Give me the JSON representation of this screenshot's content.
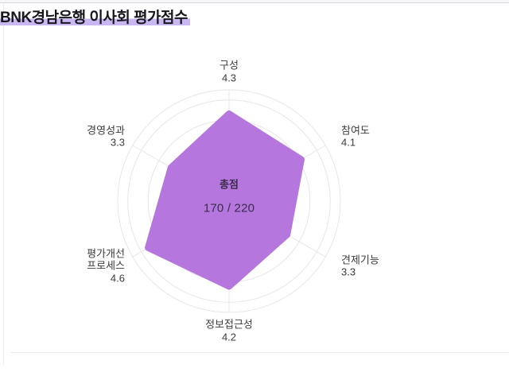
{
  "page": {
    "title": "BNK경남은행 이사회 평가점수"
  },
  "chart_data": {
    "type": "radar",
    "title": "BNK경남은행 이사회 평가점수",
    "categories": [
      "구성",
      "참여도",
      "견제기능",
      "정보접근성",
      "평가개선\n프로세스",
      "경영성과"
    ],
    "values": [
      4.3,
      4.1,
      3.3,
      4.2,
      4.6,
      3.3
    ],
    "value_labels": [
      "4.3",
      "4.1",
      "3.3",
      "4.2",
      "4.6",
      "3.3"
    ],
    "scale": {
      "min": 0,
      "max": 5.5,
      "ring_values": [
        1,
        2,
        3,
        4,
        5
      ],
      "outer_value": 5.5
    },
    "layout": {
      "grid_shape": "circle",
      "start_axis": "top",
      "direction": "clockwise",
      "legend": "none"
    },
    "center_label": {
      "title": "총점",
      "value": "170 / 220"
    },
    "colors": {
      "series_fill": "#b576de",
      "grid_line": "#eae4ea",
      "axis_label_text": "#3c3c3c",
      "center_text": "#3a2c4a",
      "title_text": "#17171e",
      "title_highlight": "#c9b7f1",
      "background": "#ffffff"
    }
  }
}
